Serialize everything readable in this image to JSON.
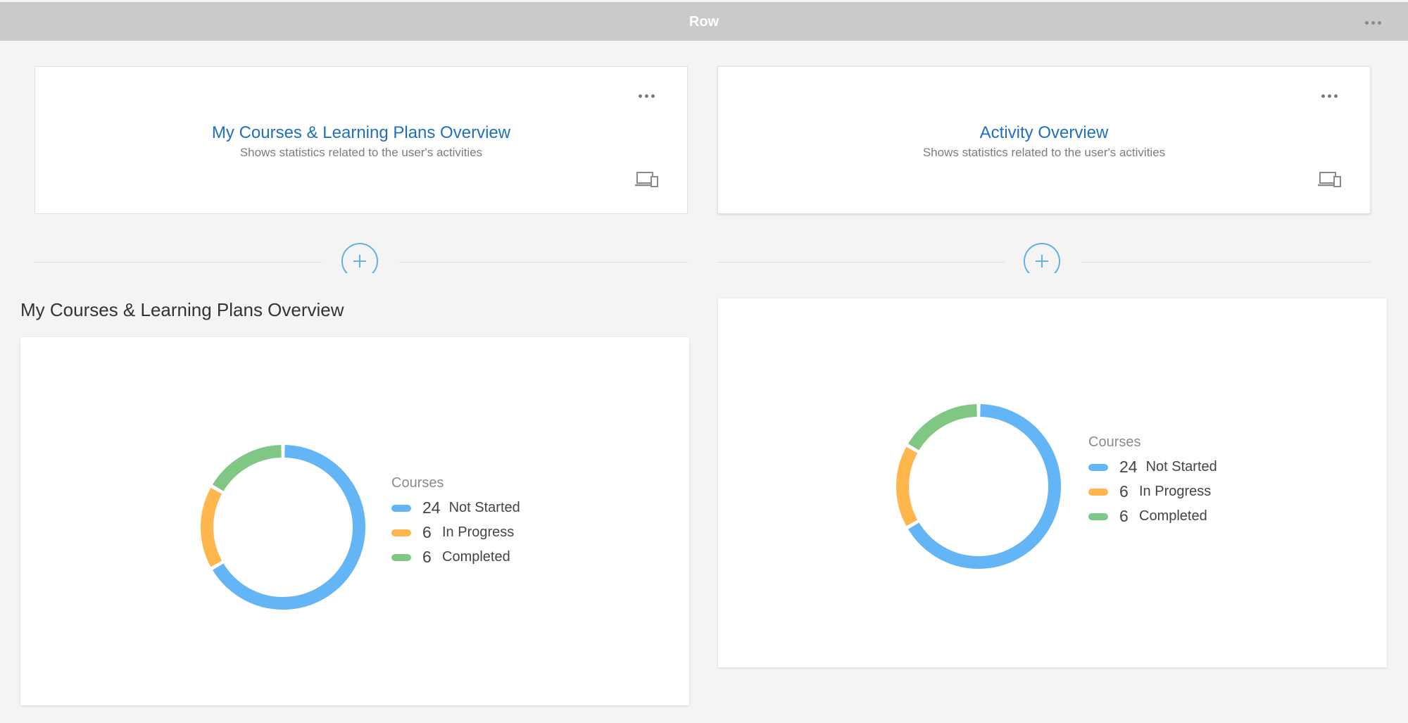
{
  "row": {
    "title": "Row"
  },
  "widgets": [
    {
      "title": "My Courses & Learning Plans Overview",
      "subtitle": "Shows statistics related to the user's activities"
    },
    {
      "title": "Activity Overview",
      "subtitle": "Shows statistics related to the user's activities"
    }
  ],
  "section": {
    "title": "My Courses & Learning Plans Overview"
  },
  "colors": {
    "not_started": "#64b5f6",
    "in_progress": "#ffb74d",
    "completed": "#81c784",
    "accent": "#1f6fbf"
  },
  "icons": {
    "menu": "ellipsis-icon",
    "device": "device-preview-icon",
    "add": "plus-circle-icon"
  },
  "chart_data": [
    {
      "type": "pie",
      "legend_title": "Courses",
      "categories": [
        "Not Started",
        "In Progress",
        "Completed"
      ],
      "values": [
        24,
        6,
        6
      ],
      "legend": "right"
    },
    {
      "type": "pie",
      "legend_title": "Courses",
      "categories": [
        "Not Started",
        "In Progress",
        "Completed"
      ],
      "values": [
        24,
        6,
        6
      ],
      "legend": "right"
    }
  ]
}
